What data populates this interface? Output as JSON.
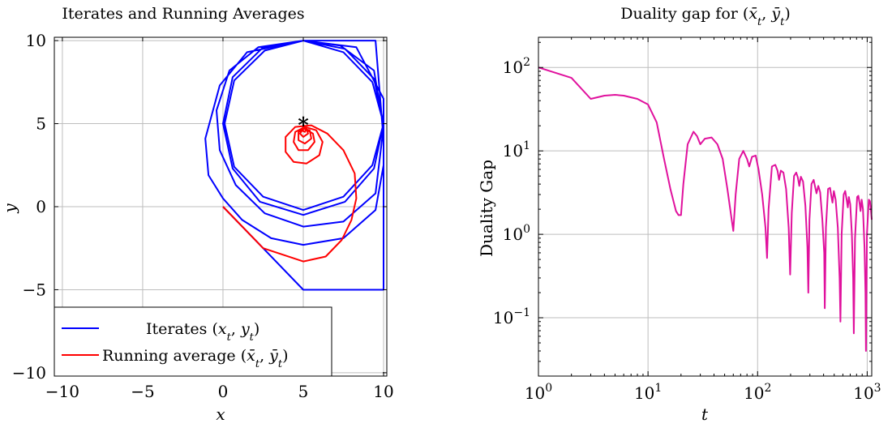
{
  "chart_data": [
    {
      "type": "line",
      "title": "Iterates and Running Averages",
      "xlabel": "x",
      "ylabel": "y",
      "xlim": [
        -10.5,
        10.2
      ],
      "ylim": [
        -10.2,
        10.2
      ],
      "xticks": [
        -10,
        -5,
        0,
        5,
        10
      ],
      "yticks": [
        -10,
        -5,
        0,
        5,
        10
      ],
      "xtick_labels": [
        "−10",
        "−5",
        "0",
        "5",
        "10"
      ],
      "ytick_labels": [
        "−10",
        "−5",
        "0",
        "5",
        "10"
      ],
      "grid": true,
      "legend_position": "bottom-left",
      "legend": [
        "Iterates (x_t, y_t)",
        "Running average (x̄_t, ȳ_t)"
      ],
      "marker": {
        "label": "*",
        "x": 5,
        "y": 5
      },
      "series": [
        {
          "name": "Iterates (x_t, y_t)",
          "color": "#0000ff",
          "points": [
            [
              0,
              0
            ],
            [
              2.5,
              -2.5
            ],
            [
              5,
              -5
            ],
            [
              10,
              -5
            ],
            [
              10,
              -1
            ],
            [
              10,
              4
            ],
            [
              9.5,
              10
            ],
            [
              5,
              10
            ],
            [
              1.5,
              9.3
            ],
            [
              -0.2,
              7.3
            ],
            [
              -1.1,
              4.1
            ],
            [
              -0.9,
              1.9
            ],
            [
              0,
              0.5
            ],
            [
              1.2,
              -0.8
            ],
            [
              3,
              -1.9
            ],
            [
              5,
              -2.3
            ],
            [
              7.5,
              -1.9
            ],
            [
              9.5,
              -0.2
            ],
            [
              10,
              2.5
            ],
            [
              10,
              6.5
            ],
            [
              8.3,
              9.6
            ],
            [
              5,
              10
            ],
            [
              2.2,
              9.6
            ],
            [
              0.4,
              8.2
            ],
            [
              -0.4,
              5.8
            ],
            [
              -0.2,
              3.4
            ],
            [
              0.8,
              1.3
            ],
            [
              2.6,
              -0.4
            ],
            [
              5,
              -1.2
            ],
            [
              7.5,
              -0.9
            ],
            [
              9.5,
              0.8
            ],
            [
              10,
              4.8
            ],
            [
              9.4,
              8.2
            ],
            [
              7.3,
              9.7
            ],
            [
              5,
              10
            ],
            [
              2.5,
              9.6
            ],
            [
              0.6,
              7.8
            ],
            [
              0,
              5
            ],
            [
              0.6,
              2.3
            ],
            [
              2.3,
              0.3
            ],
            [
              5,
              -0.5
            ],
            [
              7.6,
              0.3
            ],
            [
              9.4,
              2.3
            ],
            [
              10,
              5
            ],
            [
              9.4,
              7.7
            ],
            [
              7.6,
              9.5
            ],
            [
              5,
              10
            ],
            [
              2.6,
              9.4
            ],
            [
              0.7,
              7.6
            ],
            [
              0.1,
              5
            ],
            [
              0.7,
              2.4
            ],
            [
              2.5,
              0.6
            ],
            [
              5,
              -0.2
            ],
            [
              7.5,
              0.6
            ],
            [
              9.3,
              2.5
            ],
            [
              10,
              5
            ],
            [
              9.3,
              7.5
            ],
            [
              7.5,
              9.3
            ],
            [
              5,
              10
            ]
          ]
        },
        {
          "name": "Running average (x̄_t, ȳ_t)",
          "color": "#ff0000",
          "points": [
            [
              0,
              0
            ],
            [
              2.5,
              -2.5
            ],
            [
              5,
              -3.3
            ],
            [
              6.4,
              -3.0
            ],
            [
              7.4,
              -2.0
            ],
            [
              8.0,
              -0.8
            ],
            [
              8.3,
              0.5
            ],
            [
              8.2,
              2.0
            ],
            [
              7.5,
              3.4
            ],
            [
              6.5,
              4.4
            ],
            [
              5.5,
              4.9
            ],
            [
              4.5,
              4.8
            ],
            [
              3.9,
              4.2
            ],
            [
              3.9,
              3.3
            ],
            [
              4.4,
              2.7
            ],
            [
              5.2,
              2.6
            ],
            [
              6.0,
              3.1
            ],
            [
              6.2,
              3.9
            ],
            [
              5.8,
              4.6
            ],
            [
              5.1,
              4.8
            ],
            [
              4.5,
              4.5
            ],
            [
              4.4,
              3.9
            ],
            [
              4.7,
              3.4
            ],
            [
              5.3,
              3.4
            ],
            [
              5.7,
              3.9
            ],
            [
              5.6,
              4.4
            ],
            [
              5.1,
              4.7
            ],
            [
              4.7,
              4.5
            ],
            [
              4.7,
              4.0
            ],
            [
              5.1,
              3.8
            ],
            [
              5.5,
              4.1
            ],
            [
              5.4,
              4.6
            ],
            [
              5.0,
              4.7
            ],
            [
              4.8,
              4.4
            ],
            [
              5.0,
              4.2
            ],
            [
              5.3,
              4.4
            ],
            [
              5.2,
              4.7
            ],
            [
              5.0,
              4.8
            ],
            [
              4.9,
              4.6
            ],
            [
              5.1,
              4.5
            ],
            [
              5.2,
              4.7
            ],
            [
              5.05,
              4.85
            ],
            [
              5.0,
              4.95
            ]
          ]
        }
      ]
    },
    {
      "type": "line",
      "title": "Duality gap for (x̄_t, ȳ_t)",
      "xlabel": "t",
      "ylabel": "Duality Gap",
      "xscale": "log",
      "yscale": "log",
      "xlim": [
        1,
        1100
      ],
      "ylim": [
        0.02,
        230
      ],
      "xtick_labels": [
        "10^0",
        "10^1",
        "10^2",
        "10^3"
      ],
      "ytick_labels": [
        "10^2",
        "10^1",
        "10^0",
        "10^-1"
      ],
      "grid": true,
      "series": [
        {
          "color": "#e0119d",
          "points": [
            [
              1,
              100
            ],
            [
              2,
              75
            ],
            [
              3,
              42
            ],
            [
              4,
              46
            ],
            [
              5,
              47
            ],
            [
              6,
              46
            ],
            [
              8,
              42
            ],
            [
              10,
              36
            ],
            [
              12,
              22
            ],
            [
              14,
              8
            ],
            [
              16,
              3.5
            ],
            [
              18,
              1.9
            ],
            [
              19,
              1.7
            ],
            [
              20,
              1.7
            ],
            [
              21,
              4
            ],
            [
              23,
              12
            ],
            [
              26,
              17
            ],
            [
              28,
              15
            ],
            [
              30,
              12
            ],
            [
              33,
              14
            ],
            [
              38,
              14.5
            ],
            [
              43,
              12
            ],
            [
              48,
              8
            ],
            [
              53,
              3.5
            ],
            [
              58,
              1.5
            ],
            [
              60,
              1.1
            ],
            [
              63,
              3
            ],
            [
              68,
              8
            ],
            [
              74,
              10
            ],
            [
              80,
              8
            ],
            [
              84,
              6.5
            ],
            [
              89,
              8.5
            ],
            [
              96,
              8.8
            ],
            [
              102,
              6
            ],
            [
              110,
              3
            ],
            [
              118,
              1.2
            ],
            [
              122,
              0.52
            ],
            [
              126,
              2
            ],
            [
              135,
              6.5
            ],
            [
              145,
              6.8
            ],
            [
              152,
              5.8
            ],
            [
              157,
              4.5
            ],
            [
              163,
              5.8
            ],
            [
              172,
              5.5
            ],
            [
              182,
              3.5
            ],
            [
              192,
              1.2
            ],
            [
              198,
              0.33
            ],
            [
              205,
              1.8
            ],
            [
              215,
              5
            ],
            [
              225,
              5.5
            ],
            [
              233,
              4.8
            ],
            [
              240,
              3.8
            ],
            [
              248,
              4.9
            ],
            [
              260,
              4.3
            ],
            [
              273,
              2.2
            ],
            [
              285,
              0.7
            ],
            [
              290,
              0.2
            ],
            [
              297,
              1.5
            ],
            [
              310,
              4
            ],
            [
              325,
              4.5
            ],
            [
              335,
              3.7
            ],
            [
              345,
              3.1
            ],
            [
              358,
              3.8
            ],
            [
              372,
              3.2
            ],
            [
              390,
              1.5
            ],
            [
              405,
              0.6
            ],
            [
              410,
              0.13
            ],
            [
              420,
              1.2
            ],
            [
              440,
              3.5
            ],
            [
              458,
              3.6
            ],
            [
              470,
              2.9
            ],
            [
              482,
              2.4
            ],
            [
              496,
              3.3
            ],
            [
              515,
              2.6
            ],
            [
              540,
              1.2
            ],
            [
              560,
              0.3
            ],
            [
              570,
              0.09
            ],
            [
              585,
              1
            ],
            [
              610,
              3
            ],
            [
              630,
              3.3
            ],
            [
              650,
              2.6
            ],
            [
              665,
              2.1
            ],
            [
              680,
              2.8
            ],
            [
              700,
              2.3
            ],
            [
              725,
              1
            ],
            [
              745,
              0.3
            ],
            [
              755,
              0.065
            ],
            [
              775,
              0.9
            ],
            [
              810,
              2.8
            ],
            [
              830,
              2.9
            ],
            [
              855,
              2.3
            ],
            [
              870,
              1.9
            ],
            [
              890,
              2.6
            ],
            [
              915,
              2
            ],
            [
              945,
              0.7
            ],
            [
              965,
              0.2
            ],
            [
              975,
              0.04
            ],
            [
              995,
              1
            ],
            [
              1035,
              2.6
            ],
            [
              1060,
              2.5
            ],
            [
              1080,
              2.0
            ],
            [
              1100,
              1.5
            ]
          ]
        }
      ]
    }
  ]
}
